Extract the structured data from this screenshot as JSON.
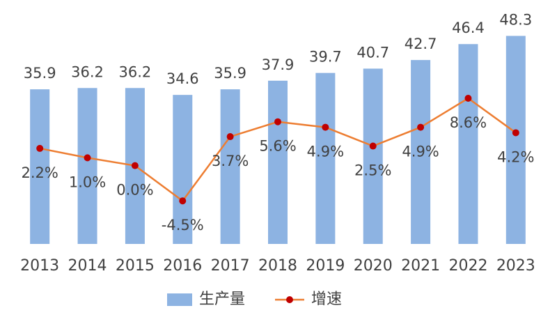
{
  "chart_data": {
    "type": "bar",
    "categories": [
      "2013",
      "2014",
      "2015",
      "2016",
      "2017",
      "2018",
      "2019",
      "2020",
      "2021",
      "2022",
      "2023"
    ],
    "ylim": [
      0,
      50
    ],
    "y2lim": [
      -10,
      17.5
    ],
    "series": [
      {
        "name": "生产量",
        "type": "bar",
        "color": "#8db3e2",
        "values": [
          35.9,
          36.2,
          36.2,
          34.6,
          35.9,
          37.9,
          39.7,
          40.7,
          42.7,
          46.4,
          48.3
        ]
      },
      {
        "name": "增速",
        "type": "line",
        "axis": "y2",
        "color": "#ed7d31",
        "marker_color": "#c00000",
        "values": [
          2.2,
          1.0,
          0.0,
          -4.5,
          3.7,
          5.6,
          4.9,
          2.5,
          4.9,
          8.6,
          4.2
        ],
        "value_labels": [
          "2.2%",
          "1.0%",
          "0.0%",
          "-4.5%",
          "3.7%",
          "5.6%",
          "4.9%",
          "2.5%",
          "4.9%",
          "8.6%",
          "4.2%"
        ]
      }
    ]
  }
}
